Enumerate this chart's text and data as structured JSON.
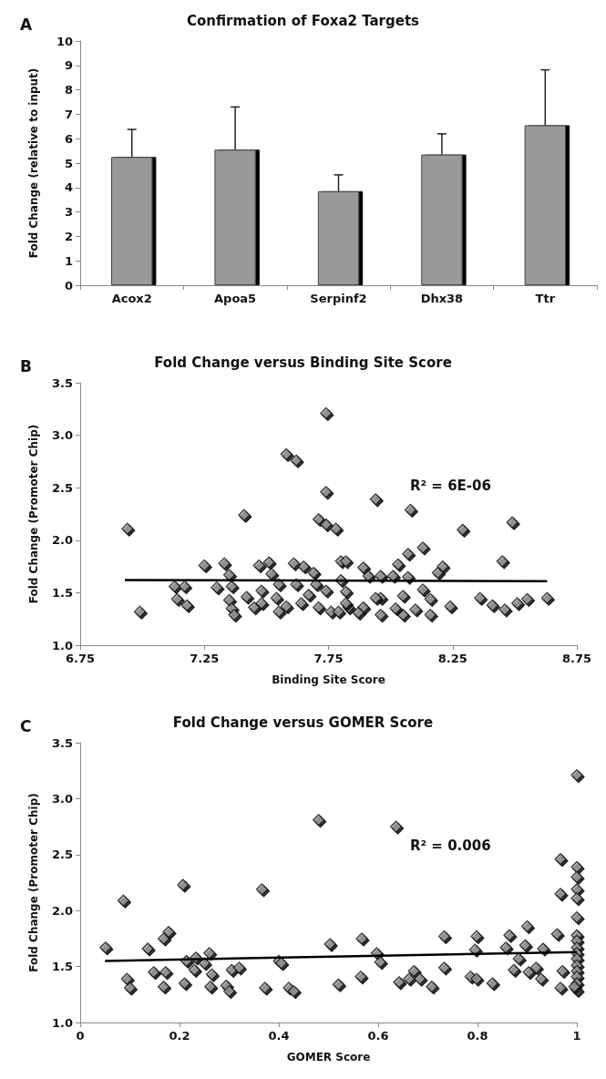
{
  "chart_data": [
    {
      "type": "bar",
      "title": "Confirmation of Foxa2 Targets",
      "ylabel": "Fold Change (relative to input)",
      "annotations": [
        "A"
      ],
      "categories": [
        "Acox2",
        "Apoa5",
        "Serpinf2",
        "Dhx38",
        "Ttr"
      ],
      "values": [
        5.25,
        5.55,
        3.85,
        5.35,
        6.55
      ],
      "errors": [
        [
          5.25,
          6.38
        ],
        [
          5.55,
          7.3
        ],
        [
          3.85,
          4.52
        ],
        [
          5.35,
          6.2
        ],
        [
          6.55,
          8.82
        ]
      ],
      "color": "#999999",
      "ylim": [
        0,
        10
      ],
      "yticks": [
        0,
        1,
        2,
        3,
        4,
        5,
        6,
        7,
        8,
        9,
        10
      ],
      "grid": false
    },
    {
      "type": "scatter",
      "title": "Fold Change versus Binding Site Score",
      "xlabel": "Binding Site Score",
      "ylabel": "Fold Change (Promoter Chip)",
      "annotations": [
        "B",
        "R² = 6E-06"
      ],
      "marker": "diamond",
      "grid": false,
      "xlim": [
        6.75,
        8.75
      ],
      "xticks": [
        6.75,
        7.25,
        7.75,
        8.25,
        8.75
      ],
      "ylim": [
        1,
        3.5
      ],
      "yticks": [
        {
          "value": 1,
          "label": "1.0"
        },
        {
          "value": 1.5,
          "label": "1.5"
        },
        {
          "value": 2,
          "label": "2.0"
        },
        {
          "value": 2.5,
          "label": "2.5"
        },
        {
          "value": 3,
          "label": "3.0"
        },
        {
          "value": 3.5,
          "label": "3.5"
        }
      ],
      "series": [
        {
          "color": "#999999",
          "x": [
            6.94,
            6.99,
            7.58,
            7.62,
            7.74,
            7.41,
            7.74,
            7.71,
            7.74,
            7.78,
            7.13,
            7.17,
            7.14,
            7.18,
            7.25,
            7.3,
            7.33,
            7.35,
            7.36,
            7.35,
            7.36,
            7.37,
            7.42,
            7.45,
            7.47,
            7.48,
            7.48,
            7.51,
            7.52,
            7.55,
            7.54,
            7.55,
            7.58,
            7.61,
            7.62,
            7.64,
            7.65,
            7.69,
            7.7,
            7.67,
            7.71,
            7.74,
            7.76,
            7.79,
            7.8,
            7.8,
            7.94,
            8.08,
            8.29,
            8.49,
            8.13,
            8.45,
            8.07,
            8.03,
            7.82,
            7.89,
            8.21,
            8.19,
            7.96,
            8.01,
            8.07,
            7.91,
            8.36,
            8.41,
            8.46,
            8.51,
            8.55,
            8.63,
            8.24,
            8.16,
            8.16,
            8.13,
            8.05,
            8.05,
            8.02,
            8.1,
            7.96,
            7.94,
            7.96,
            7.89,
            7.87,
            7.82,
            7.83,
            7.82
          ],
          "values": [
            2.11,
            1.32,
            2.82,
            2.76,
            3.21,
            2.24,
            2.46,
            2.2,
            2.15,
            2.11,
            1.56,
            1.56,
            1.44,
            1.38,
            1.76,
            1.55,
            1.78,
            1.67,
            1.56,
            1.43,
            1.35,
            1.29,
            1.46,
            1.36,
            1.76,
            1.52,
            1.4,
            1.79,
            1.68,
            1.58,
            1.45,
            1.32,
            1.37,
            1.78,
            1.58,
            1.4,
            1.75,
            1.69,
            1.58,
            1.48,
            1.36,
            1.52,
            1.32,
            1.32,
            1.8,
            1.62,
            2.39,
            2.29,
            2.1,
            2.17,
            1.93,
            1.8,
            1.87,
            1.77,
            1.8,
            1.74,
            1.75,
            1.69,
            1.66,
            1.66,
            1.65,
            1.66,
            1.45,
            1.38,
            1.34,
            1.4,
            1.44,
            1.45,
            1.37,
            1.29,
            1.44,
            1.53,
            1.47,
            1.29,
            1.35,
            1.34,
            1.45,
            1.45,
            1.29,
            1.36,
            1.31,
            1.51,
            1.36,
            1.4
          ]
        },
        {
          "type": "line",
          "color": "#000000",
          "marker": "none",
          "x": [
            6.93,
            8.63
          ],
          "values": [
            1.62,
            1.61
          ]
        }
      ]
    },
    {
      "type": "scatter",
      "title": "Fold Change versus GOMER Score",
      "xlabel": "GOMER Score",
      "ylabel": "Fold Change (Promoter Chip)",
      "annotations": [
        "C",
        "R² = 0.006"
      ],
      "marker": "diamond",
      "grid": false,
      "xlim": [
        0,
        1
      ],
      "xticks": [
        0,
        0.2,
        0.4,
        0.6,
        0.8,
        1
      ],
      "ylim": [
        1,
        3.5
      ],
      "yticks": [
        {
          "value": 1,
          "label": "1.0"
        },
        {
          "value": 1.5,
          "label": "1.5"
        },
        {
          "value": 2,
          "label": "2.0"
        },
        {
          "value": 2.5,
          "label": "2.5"
        },
        {
          "value": 3,
          "label": "3.0"
        },
        {
          "value": 3.5,
          "label": "3.5"
        }
      ],
      "series": [
        {
          "color": "#999999",
          "x": [
            0.051,
            0.087,
            0.094,
            0.1,
            0.136,
            0.148,
            0.168,
            0.178,
            0.172,
            0.168,
            0.207,
            0.21,
            0.214,
            0.233,
            0.23,
            0.26,
            0.25,
            0.265,
            0.262,
            0.305,
            0.32,
            0.294,
            0.3,
            0.366,
            0.372,
            0.4,
            0.405,
            0.42,
            0.43,
            0.48,
            0.503,
            0.52,
            0.565,
            0.567,
            0.636,
            0.597,
            0.604,
            0.642,
            0.662,
            0.672,
            0.684,
            0.708,
            0.733,
            0.733,
            0.786,
            0.798,
            0.83,
            0.798,
            0.795,
            0.864,
            0.9,
            0.857,
            0.883,
            0.873,
            0.896,
            0.903,
            0.918,
            0.928,
            0.932,
            0.96,
            0.967,
            0.967,
            0.971,
            0.967,
            1,
            1,
            1,
            1,
            1,
            1,
            1,
            1,
            1,
            1,
            1,
            1,
            1,
            1,
            1,
            1,
            0.995
          ],
          "values": [
            1.67,
            2.09,
            1.39,
            1.31,
            1.66,
            1.45,
            1.75,
            1.81,
            1.45,
            1.32,
            2.23,
            1.35,
            1.55,
            1.58,
            1.47,
            1.62,
            1.53,
            1.43,
            1.32,
            1.47,
            1.49,
            1.33,
            1.28,
            2.19,
            1.31,
            1.55,
            1.53,
            1.31,
            1.28,
            2.81,
            1.7,
            1.34,
            1.41,
            1.75,
            2.75,
            1.62,
            1.54,
            1.36,
            1.39,
            1.46,
            1.39,
            1.32,
            1.77,
            1.49,
            1.41,
            1.39,
            1.35,
            1.77,
            1.65,
            1.78,
            1.86,
            1.67,
            1.57,
            1.47,
            1.69,
            1.45,
            1.49,
            1.39,
            1.66,
            1.79,
            2.46,
            2.15,
            1.46,
            1.31,
            3.21,
            2.39,
            2.3,
            2.19,
            2.11,
            1.94,
            1.78,
            1.73,
            1.67,
            1.62,
            1.57,
            1.51,
            1.46,
            1.41,
            1.35,
            1.29,
            1.32
          ]
        },
        {
          "type": "line",
          "color": "#000000",
          "marker": "none",
          "x": [
            0.05,
            1
          ],
          "values": [
            1.55,
            1.63
          ]
        }
      ]
    }
  ]
}
